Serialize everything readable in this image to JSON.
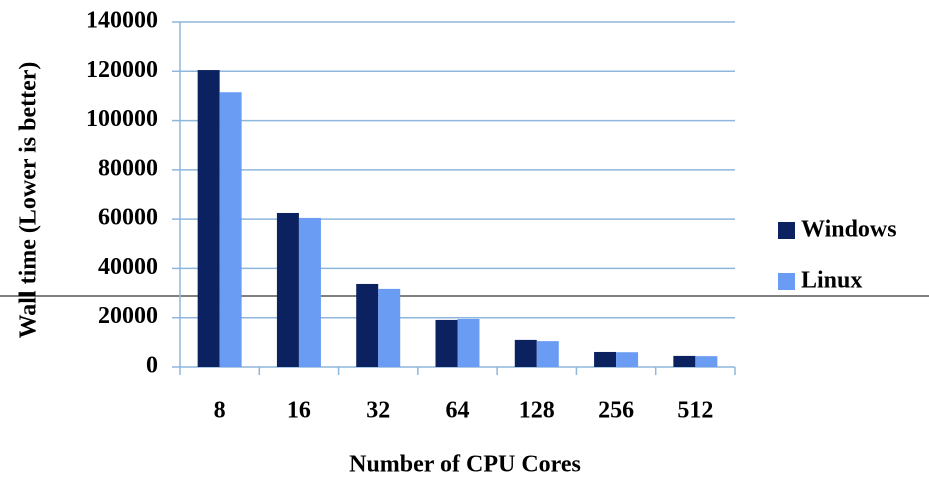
{
  "chart_data": {
    "type": "bar",
    "x_label": "Number of  CPU Cores",
    "y_label": "Wall time (Lower is better)",
    "categories": [
      "8",
      "16",
      "32",
      "64",
      "128",
      "256",
      "512"
    ],
    "series": [
      {
        "name": "Windows",
        "color": "#0b2160",
        "values": [
          120500,
          62500,
          33700,
          19100,
          11000,
          6100,
          4500
        ]
      },
      {
        "name": "Linux",
        "color": "#6b9cf4",
        "values": [
          111500,
          60500,
          31700,
          19500,
          10500,
          6000,
          4400
        ]
      }
    ],
    "ylim": [
      0,
      140000
    ],
    "yticks": [
      0,
      20000,
      40000,
      60000,
      80000,
      100000,
      120000,
      140000
    ],
    "grid": true,
    "legend": "right"
  }
}
